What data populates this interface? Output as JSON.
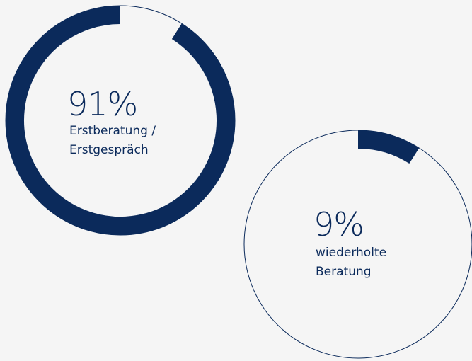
{
  "chart_data": [
    {
      "type": "donut",
      "values": [
        91
      ],
      "value_labels": [
        "91%"
      ],
      "categories": [
        "Erstberatung / Erstgespräch"
      ],
      "color": "#0b2a5b",
      "direction": "counterclockwise"
    },
    {
      "type": "donut",
      "values": [
        9
      ],
      "value_labels": [
        "9%"
      ],
      "categories": [
        "wiederholte Beratung"
      ],
      "color": "#0b2a5b",
      "direction": "clockwise"
    }
  ]
}
